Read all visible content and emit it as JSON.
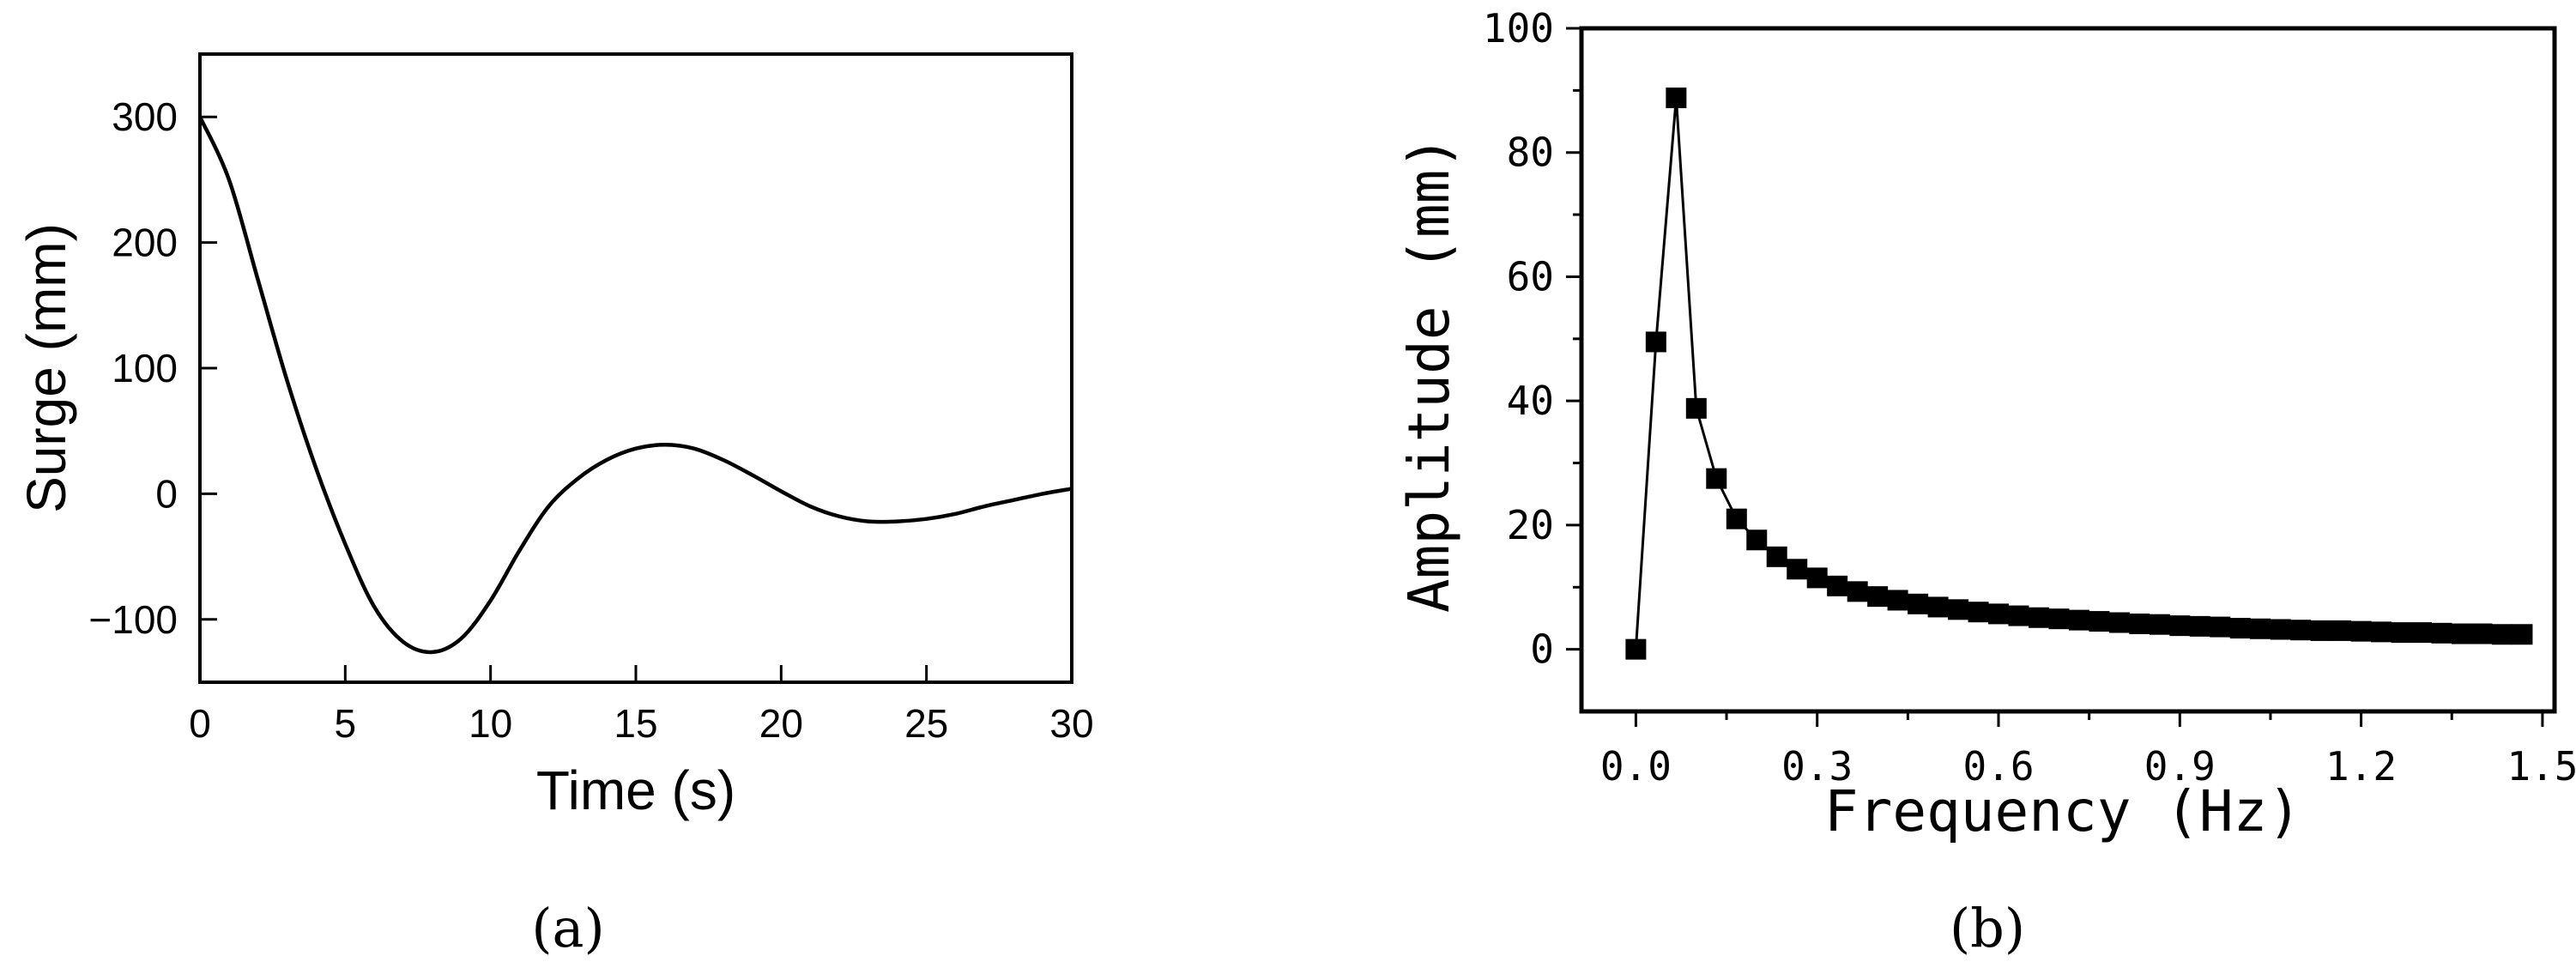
{
  "chart_data": [
    {
      "panel_label": "(a)",
      "type": "line",
      "title": "",
      "xlabel": "Time (s)",
      "ylabel": "Surge (mm)",
      "xlim": [
        0,
        30
      ],
      "ylim": [
        -150,
        350
      ],
      "xticks": [
        0,
        5,
        10,
        15,
        20,
        25,
        30
      ],
      "yticks": [
        -100,
        0,
        100,
        200,
        300
      ],
      "ytick_labels": [
        "−100",
        "0",
        "100",
        "200",
        "300"
      ],
      "grid": false,
      "series": [
        {
          "x": [
            0,
            1,
            2,
            3,
            4,
            5,
            6,
            7,
            8,
            9,
            10,
            11,
            12,
            13,
            14,
            15,
            16,
            17,
            18,
            19,
            20,
            21,
            22,
            23,
            24,
            25,
            26,
            27,
            28,
            29,
            30
          ],
          "values": [
            300,
            250,
            170,
            90,
            20,
            -40,
            -90,
            -118,
            -126,
            -115,
            -85,
            -45,
            -10,
            12,
            27,
            36,
            39,
            36,
            27,
            15,
            2,
            -10,
            -18,
            -22,
            -22,
            -20,
            -16,
            -10,
            -5,
            0,
            4
          ]
        }
      ]
    },
    {
      "panel_label": "(b)",
      "type": "line",
      "title": "",
      "xlabel": "Frequency (Hz)",
      "ylabel": "Amplitude (mm)",
      "xlim": [
        -0.09,
        1.52
      ],
      "ylim": [
        -10,
        100
      ],
      "xticks": [
        0.0,
        0.3,
        0.6,
        0.9,
        1.2,
        1.5
      ],
      "xtick_labels": [
        "0.0",
        "0.3",
        "0.6",
        "0.9",
        "1.2",
        "1.5"
      ],
      "yticks": [
        0,
        20,
        40,
        60,
        80,
        100
      ],
      "grid": false,
      "markers": "square",
      "series": [
        {
          "x": [
            0.0,
            0.0333,
            0.0667,
            0.1,
            0.1333,
            0.1667,
            0.2,
            0.2333,
            0.2667,
            0.3,
            0.3333,
            0.3667,
            0.4,
            0.4333,
            0.4667,
            0.5,
            0.5333,
            0.5667,
            0.6,
            0.6333,
            0.6667,
            0.7,
            0.7333,
            0.7667,
            0.8,
            0.8333,
            0.8667,
            0.9,
            0.9333,
            0.9667,
            1.0,
            1.0333,
            1.0667,
            1.1,
            1.1333,
            1.1667,
            1.2,
            1.2333,
            1.2667,
            1.3,
            1.3333,
            1.3667,
            1.4,
            1.4333,
            1.4667
          ],
          "values": [
            0.0,
            49.5,
            88.8,
            38.8,
            27.5,
            21.0,
            17.6,
            14.9,
            12.9,
            11.5,
            10.2,
            9.3,
            8.5,
            7.9,
            7.3,
            6.8,
            6.4,
            6.0,
            5.7,
            5.4,
            5.1,
            4.9,
            4.7,
            4.5,
            4.3,
            4.1,
            4.0,
            3.8,
            3.7,
            3.6,
            3.4,
            3.3,
            3.2,
            3.1,
            3.0,
            3.0,
            2.9,
            2.8,
            2.7,
            2.7,
            2.6,
            2.5,
            2.5,
            2.4,
            2.4
          ]
        }
      ]
    }
  ]
}
